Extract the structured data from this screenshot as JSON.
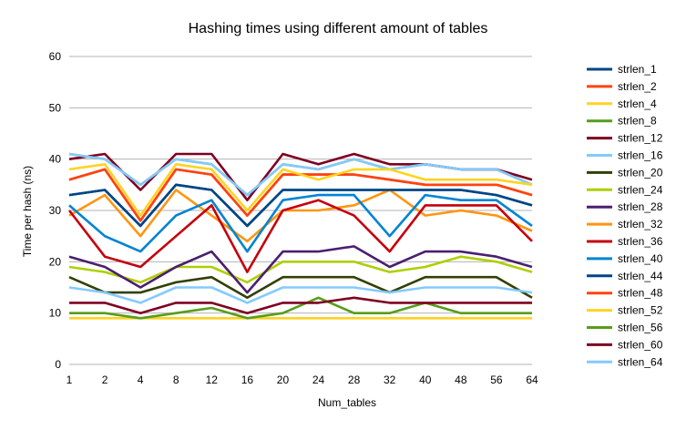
{
  "chart_data": {
    "type": "line",
    "title": "Hashing times using different amount of tables",
    "xlabel": "Num_tables",
    "ylabel": "Time per hash (ns)",
    "ylim": [
      0,
      60
    ],
    "yticks": [
      0,
      10,
      20,
      30,
      40,
      50,
      60
    ],
    "grid": true,
    "legend_position": "right",
    "categories": [
      "1",
      "2",
      "4",
      "8",
      "12",
      "16",
      "20",
      "24",
      "28",
      "32",
      "40",
      "48",
      "56",
      "64"
    ],
    "series": [
      {
        "name": "strlen_1",
        "color": "#004586",
        "values": [
          33,
          34,
          27,
          35,
          34,
          27,
          34,
          34,
          34,
          34,
          34,
          34,
          33,
          31
        ]
      },
      {
        "name": "strlen_2",
        "color": "#ff420e",
        "values": [
          36,
          38,
          28,
          38,
          37,
          29,
          37,
          37,
          37,
          36,
          35,
          35,
          35,
          33
        ]
      },
      {
        "name": "strlen_4",
        "color": "#ffd320",
        "values": [
          9,
          9,
          9,
          9,
          9,
          9,
          9,
          9,
          9,
          9,
          9,
          9,
          9,
          9
        ]
      },
      {
        "name": "strlen_8",
        "color": "#579d1c",
        "values": [
          41,
          40,
          35,
          40,
          39,
          33,
          39,
          38,
          40,
          38,
          39,
          38,
          38,
          35
        ]
      },
      {
        "name": "strlen_12",
        "color": "#7e0021",
        "values": [
          40,
          41,
          34,
          41,
          41,
          32,
          41,
          39,
          41,
          39,
          39,
          38,
          38,
          36
        ]
      },
      {
        "name": "strlen_16",
        "color": "#83caff",
        "values": [
          41,
          40,
          35,
          40,
          39,
          33,
          39,
          38,
          40,
          38,
          39,
          38,
          38,
          35
        ]
      },
      {
        "name": "strlen_20",
        "color": "#314004",
        "values": [
          17,
          14,
          14,
          16,
          17,
          13,
          17,
          17,
          17,
          14,
          17,
          17,
          17,
          13
        ]
      },
      {
        "name": "strlen_24",
        "color": "#aecf00",
        "values": [
          19,
          18,
          16,
          19,
          19,
          16,
          20,
          20,
          20,
          18,
          19,
          21,
          20,
          18
        ]
      },
      {
        "name": "strlen_28",
        "color": "#4b1f6f",
        "values": [
          21,
          19,
          15,
          19,
          22,
          14,
          22,
          22,
          23,
          19,
          22,
          22,
          21,
          19
        ]
      },
      {
        "name": "strlen_32",
        "color": "#ff950e",
        "values": [
          29,
          33,
          25,
          34,
          29,
          24,
          30,
          30,
          31,
          34,
          29,
          30,
          29,
          26
        ]
      },
      {
        "name": "strlen_36",
        "color": "#c5000b",
        "values": [
          30,
          21,
          19,
          25,
          31,
          18,
          30,
          32,
          29,
          22,
          31,
          31,
          31,
          24
        ]
      },
      {
        "name": "strlen_40",
        "color": "#0084d1",
        "values": [
          31,
          25,
          22,
          29,
          32,
          22,
          32,
          33,
          33,
          25,
          33,
          32,
          32,
          27
        ]
      },
      {
        "name": "strlen_44",
        "color": "#004586",
        "values": [
          33,
          34,
          27,
          35,
          34,
          27,
          34,
          34,
          34,
          34,
          34,
          34,
          33,
          31
        ]
      },
      {
        "name": "strlen_48",
        "color": "#ff420e",
        "values": [
          36,
          38,
          28,
          38,
          37,
          29,
          37,
          37,
          37,
          36,
          35,
          35,
          35,
          33
        ]
      },
      {
        "name": "strlen_52",
        "color": "#ffd320",
        "values": [
          38,
          39,
          29,
          39,
          38,
          30,
          38,
          36,
          38,
          38,
          36,
          36,
          36,
          35
        ]
      },
      {
        "name": "strlen_56",
        "color": "#579d1c",
        "values": [
          10,
          10,
          9,
          10,
          11,
          9,
          10,
          13,
          10,
          10,
          12,
          10,
          10,
          10
        ]
      },
      {
        "name": "strlen_60",
        "color": "#7e0021",
        "values": [
          12,
          12,
          10,
          12,
          12,
          10,
          12,
          12,
          13,
          12,
          12,
          12,
          12,
          12
        ]
      },
      {
        "name": "strlen_64",
        "color": "#83caff",
        "values": [
          15,
          14,
          12,
          15,
          15,
          12,
          15,
          15,
          15,
          14,
          15,
          15,
          15,
          14
        ]
      }
    ],
    "extra_series_note": ""
  }
}
